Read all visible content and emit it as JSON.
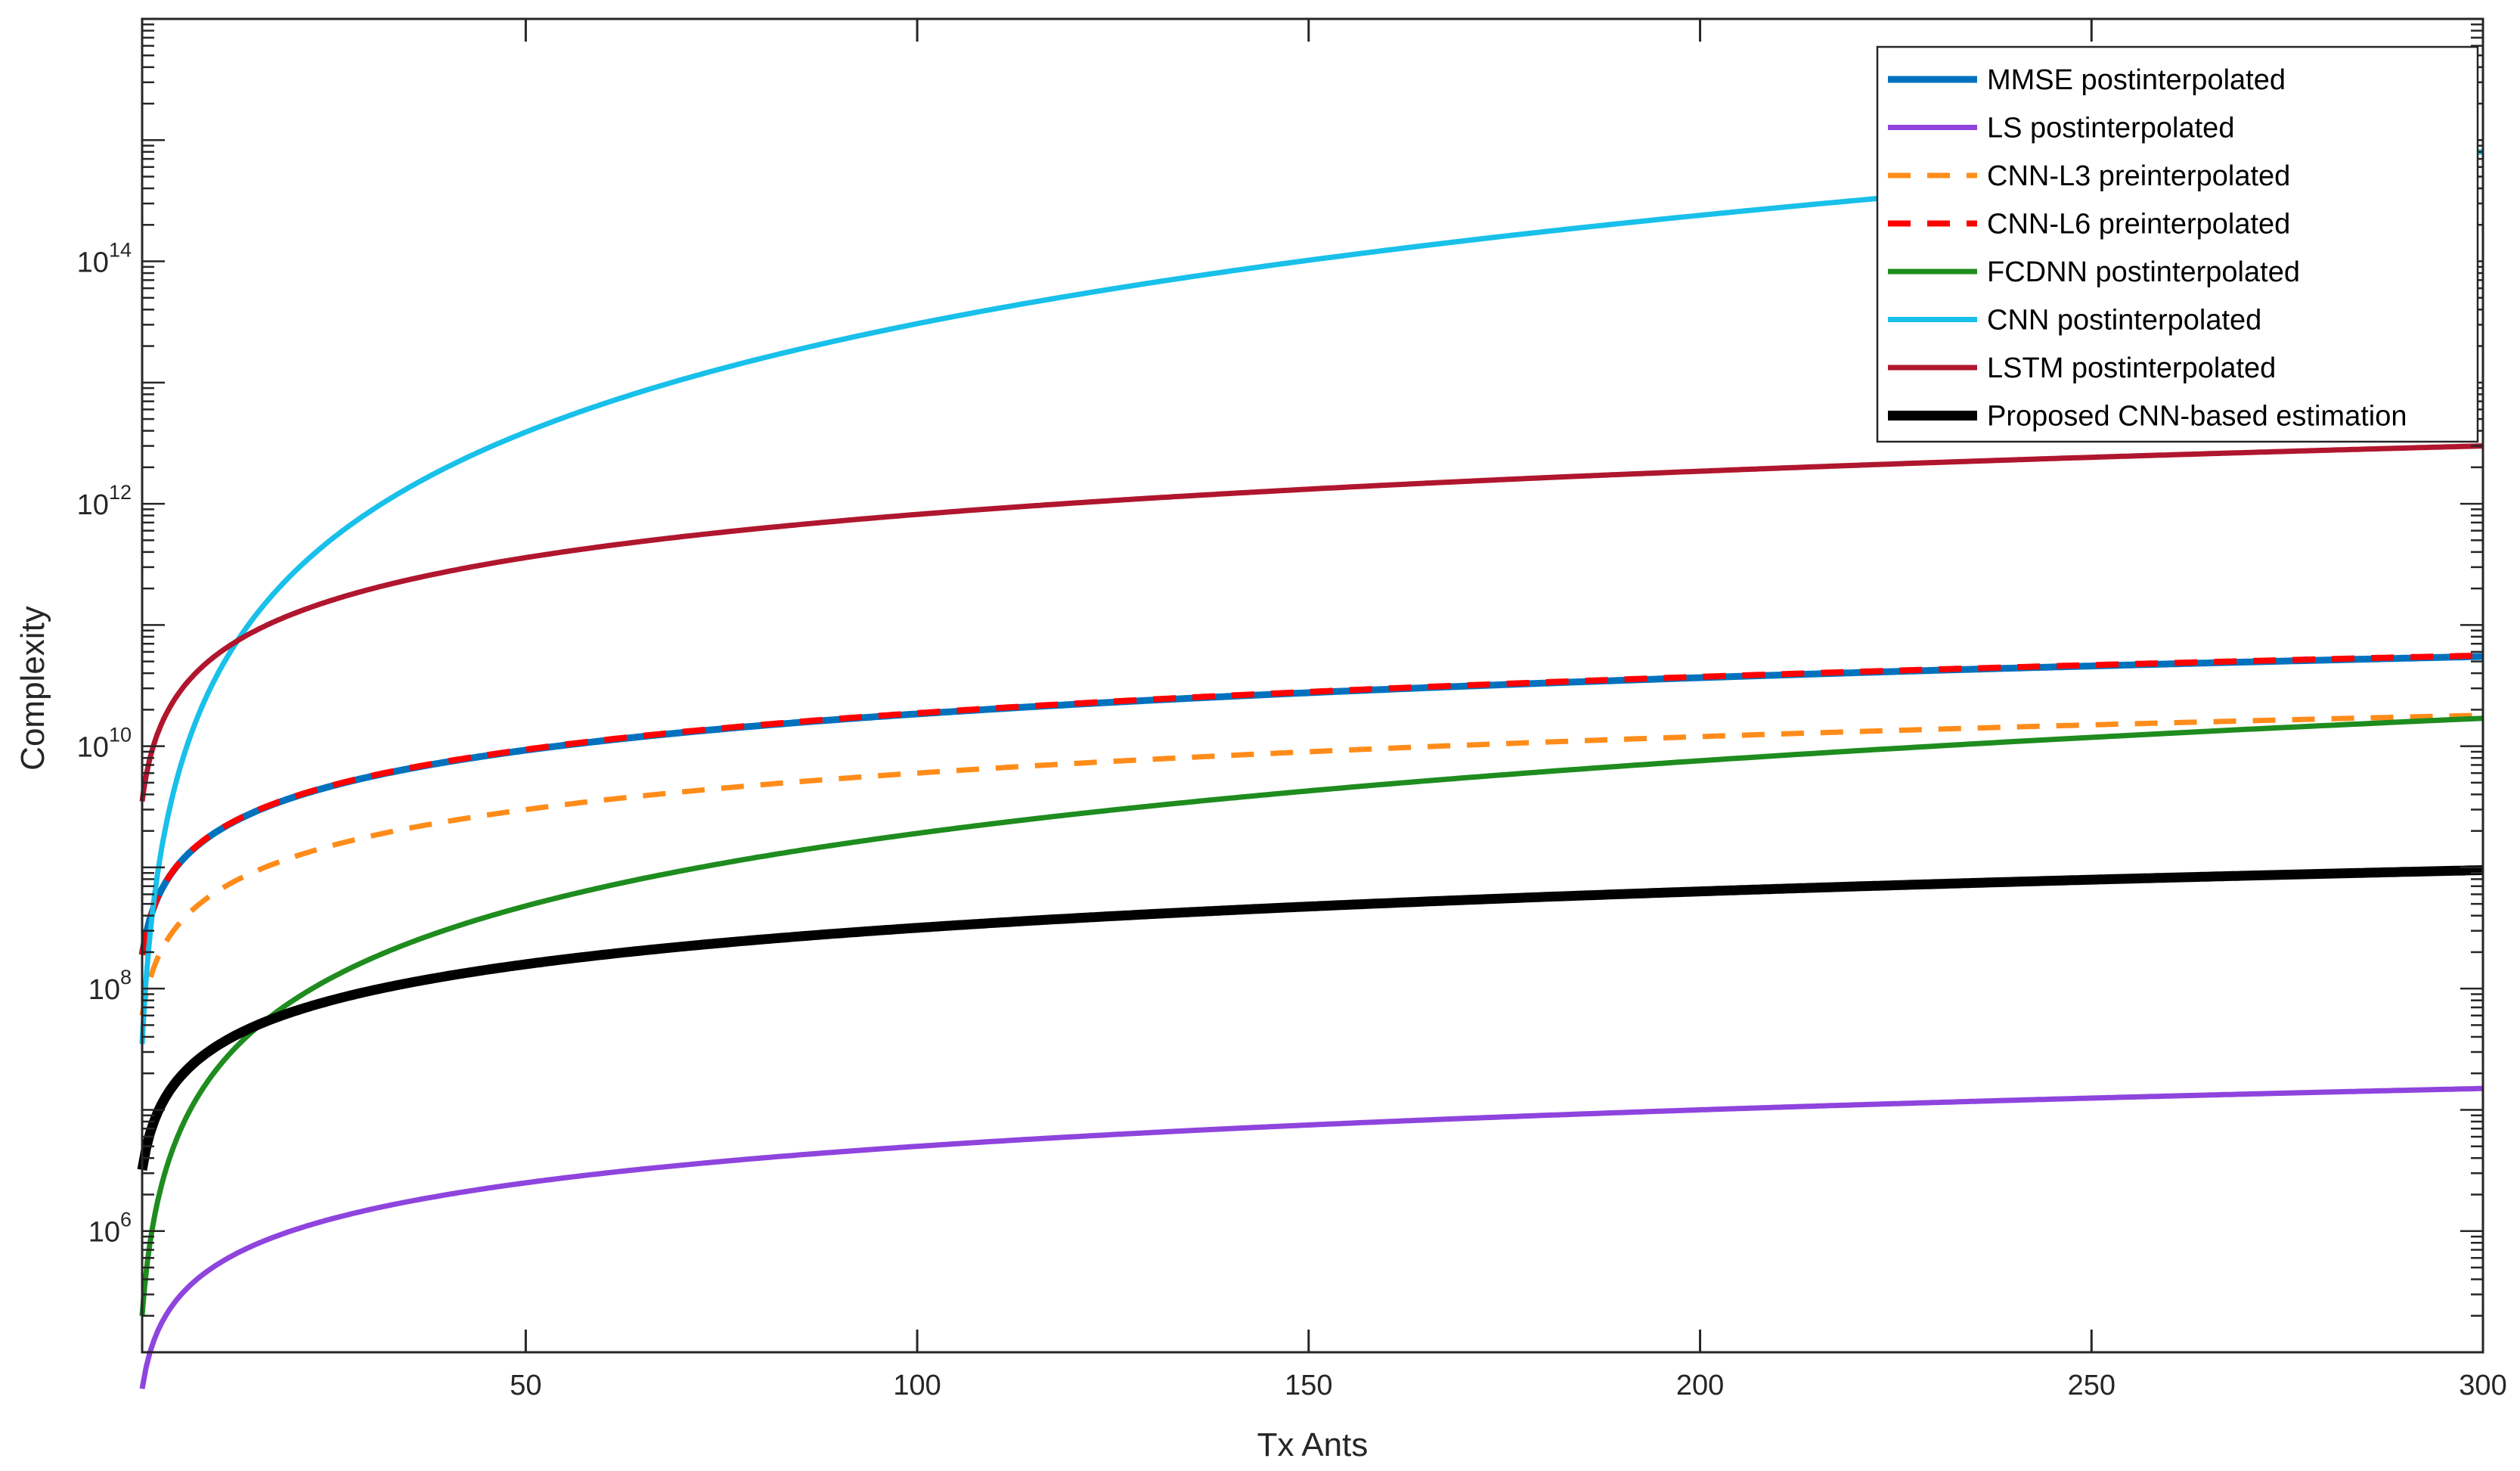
{
  "chart_data": {
    "type": "line",
    "title": "",
    "xlabel": "Tx Ants",
    "ylabel": "Complexity",
    "x_scale": "linear",
    "y_scale": "log",
    "xlim": [
      1,
      300
    ],
    "ylim": [
      100000.0,
      1e+16
    ],
    "xticks": [
      50,
      100,
      150,
      200,
      250,
      300
    ],
    "yticks": [
      {
        "base": "10",
        "exp": "6",
        "value": 1000000.0
      },
      {
        "base": "10",
        "exp": "8",
        "value": 100000000.0
      },
      {
        "base": "10",
        "exp": "10",
        "value": 10000000000.0
      },
      {
        "base": "10",
        "exp": "12",
        "value": 1000000000000.0
      },
      {
        "base": "10",
        "exp": "14",
        "value": 100000000000000.0
      }
    ],
    "grid": false,
    "legend_position": "top-right",
    "series": [
      {
        "name": "MMSE postinterpolated",
        "color": "#0072BD",
        "style": "solid",
        "width": 9,
        "x": [
          1,
          300
        ],
        "y": [
          190000000.0,
          55000000000.0
        ],
        "p": 1.0
      },
      {
        "name": "LS postinterpolated",
        "color": "#8E44DD",
        "style": "solid",
        "width": 7,
        "x": [
          1,
          300
        ],
        "y": [
          50000.0,
          15000000.0
        ],
        "p": 1.0
      },
      {
        "name": "CNN-L3 preinterpolated",
        "color": "#FF8C1A",
        "style": "dashed",
        "width": 7,
        "x": [
          1,
          300
        ],
        "y": [
          60000000.0,
          18000000000.0
        ],
        "p": 1.0
      },
      {
        "name": "CNN-L6 preinterpolated",
        "color": "#FF0000",
        "style": "dashed",
        "width": 8,
        "x": [
          1,
          300
        ],
        "y": [
          190000000.0,
          56000000000.0
        ],
        "p": 1.0
      },
      {
        "name": "FCDNN postinterpolated",
        "color": "#1E8C1E",
        "style": "solid",
        "width": 7,
        "x": [
          1,
          300
        ],
        "y": [
          200000.0,
          17000000000.0
        ],
        "p": 2.0
      },
      {
        "name": "CNN postinterpolated",
        "color": "#18C0EA",
        "style": "solid",
        "width": 7,
        "x": [
          1,
          300
        ],
        "y": [
          35000000.0,
          800000000000000.0
        ],
        "p": 3.0
      },
      {
        "name": "LSTM postinterpolated",
        "color": "#B0162E",
        "style": "solid",
        "width": 7,
        "x": [
          1,
          300
        ],
        "y": [
          3500000000.0,
          3000000000000.0
        ],
        "p": 1.2
      },
      {
        "name": "Proposed CNN-based estimation",
        "color": "#000000",
        "style": "solid",
        "width": 13,
        "x": [
          1,
          300
        ],
        "y": [
          3200000.0,
          950000000.0
        ],
        "p": 1.0
      }
    ]
  }
}
